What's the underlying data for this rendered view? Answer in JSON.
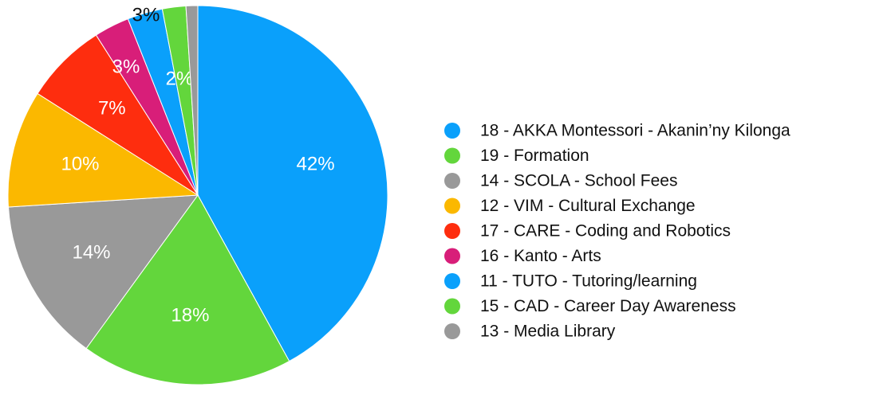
{
  "chart_data": {
    "type": "pie",
    "categories": [
      "18 - AKKA Montessori - Akanin’ny Kilonga",
      "19 - Formation",
      "14 - SCOLA - School Fees",
      "12 - VIM - Cultural Exchange",
      "17 - CARE - Coding and Robotics",
      "16 - Kanto - Arts",
      "11 - TUTO - Tutoring/learning",
      "15 - CAD - Career Day Awareness",
      "13 - Media Library"
    ],
    "values": [
      42,
      18,
      14,
      10,
      7,
      3,
      3,
      2,
      1
    ],
    "value_labels": [
      "42%",
      "18%",
      "14%",
      "10%",
      "7%",
      "3%",
      "3%",
      "2%",
      null
    ],
    "colors": [
      "#0aa0fb",
      "#63d63c",
      "#999999",
      "#fbb800",
      "#fe2d0e",
      "#d81e79",
      "#0aa0fb",
      "#63d63c",
      "#999999"
    ],
    "legend": "right"
  }
}
